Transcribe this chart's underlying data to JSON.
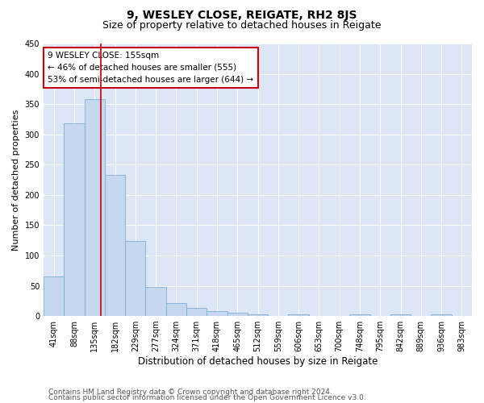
{
  "title": "9, WESLEY CLOSE, REIGATE, RH2 8JS",
  "subtitle": "Size of property relative to detached houses in Reigate",
  "xlabel": "Distribution of detached houses by size in Reigate",
  "ylabel": "Number of detached properties",
  "footer_line1": "Contains HM Land Registry data © Crown copyright and database right 2024.",
  "footer_line2": "Contains public sector information licensed under the Open Government Licence v3.0.",
  "categories": [
    "41sqm",
    "88sqm",
    "135sqm",
    "182sqm",
    "229sqm",
    "277sqm",
    "324sqm",
    "371sqm",
    "418sqm",
    "465sqm",
    "512sqm",
    "559sqm",
    "606sqm",
    "653sqm",
    "700sqm",
    "748sqm",
    "795sqm",
    "842sqm",
    "889sqm",
    "936sqm",
    "983sqm"
  ],
  "values": [
    65,
    318,
    358,
    233,
    124,
    48,
    22,
    13,
    8,
    5,
    3,
    0,
    3,
    0,
    0,
    3,
    0,
    3,
    0,
    3,
    0
  ],
  "bar_color": "#c5d8f0",
  "bar_edge_color": "#7aadd4",
  "vline_x_index": 2.3,
  "vline_color": "#cc0000",
  "annotation_text": "9 WESLEY CLOSE: 155sqm\n← 46% of detached houses are smaller (555)\n53% of semi-detached houses are larger (644) →",
  "annotation_box_color": "#ffffff",
  "annotation_box_edge": "#cc0000",
  "ylim": [
    0,
    450
  ],
  "yticks": [
    0,
    50,
    100,
    150,
    200,
    250,
    300,
    350,
    400,
    450
  ],
  "background_color": "#dce6f5",
  "title_fontsize": 10,
  "subtitle_fontsize": 9,
  "xlabel_fontsize": 8.5,
  "ylabel_fontsize": 8,
  "tick_fontsize": 7,
  "annotation_fontsize": 7.5,
  "footer_fontsize": 6.5
}
